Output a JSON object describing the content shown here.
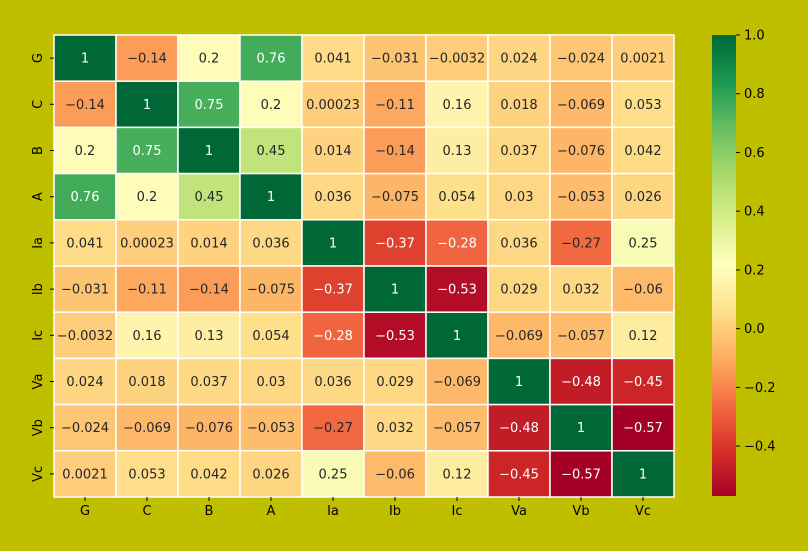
{
  "page_background": "#bfbf00",
  "chart_data": {
    "type": "heatmap",
    "title": "",
    "xlabel": "",
    "ylabel": "",
    "x_categories": [
      "G",
      "C",
      "B",
      "A",
      "Ia",
      "Ib",
      "Ic",
      "Va",
      "Vb",
      "Vc"
    ],
    "y_categories": [
      "G",
      "C",
      "B",
      "A",
      "Ia",
      "Ib",
      "Ic",
      "Va",
      "Vb",
      "Vc"
    ],
    "values": [
      [
        1,
        -0.14,
        0.2,
        0.76,
        0.041,
        -0.031,
        -0.0032,
        0.024,
        -0.024,
        0.0021
      ],
      [
        -0.14,
        1,
        0.75,
        0.2,
        0.00023,
        -0.11,
        0.16,
        0.018,
        -0.069,
        0.053
      ],
      [
        0.2,
        0.75,
        1,
        0.45,
        0.014,
        -0.14,
        0.13,
        0.037,
        -0.076,
        0.042
      ],
      [
        0.76,
        0.2,
        0.45,
        1,
        0.036,
        -0.075,
        0.054,
        0.03,
        -0.053,
        0.026
      ],
      [
        0.041,
        0.00023,
        0.014,
        0.036,
        1,
        -0.37,
        -0.28,
        0.036,
        -0.27,
        0.25
      ],
      [
        -0.031,
        -0.11,
        -0.14,
        -0.075,
        -0.37,
        1,
        -0.53,
        0.029,
        0.032,
        -0.06
      ],
      [
        -0.0032,
        0.16,
        0.13,
        0.054,
        -0.28,
        -0.53,
        1,
        -0.069,
        -0.057,
        0.12
      ],
      [
        0.024,
        0.018,
        0.037,
        0.03,
        0.036,
        0.029,
        -0.069,
        1,
        -0.48,
        -0.45
      ],
      [
        -0.024,
        -0.069,
        -0.076,
        -0.053,
        -0.27,
        0.032,
        -0.057,
        -0.48,
        1,
        -0.57
      ],
      [
        0.0021,
        0.053,
        0.042,
        0.026,
        0.25,
        -0.06,
        0.12,
        -0.45,
        -0.57,
        1
      ]
    ],
    "colormap": "RdYlGn",
    "vmin": -0.57,
    "vmax": 1.0,
    "colorbar_ticks": [
      "1.0",
      "0.8",
      "0.6",
      "0.4",
      "0.2",
      "0.0",
      "−0.2",
      "−0.4"
    ],
    "cell_border_color": "#ffffff",
    "grid": false,
    "colorbar_position": "right"
  }
}
